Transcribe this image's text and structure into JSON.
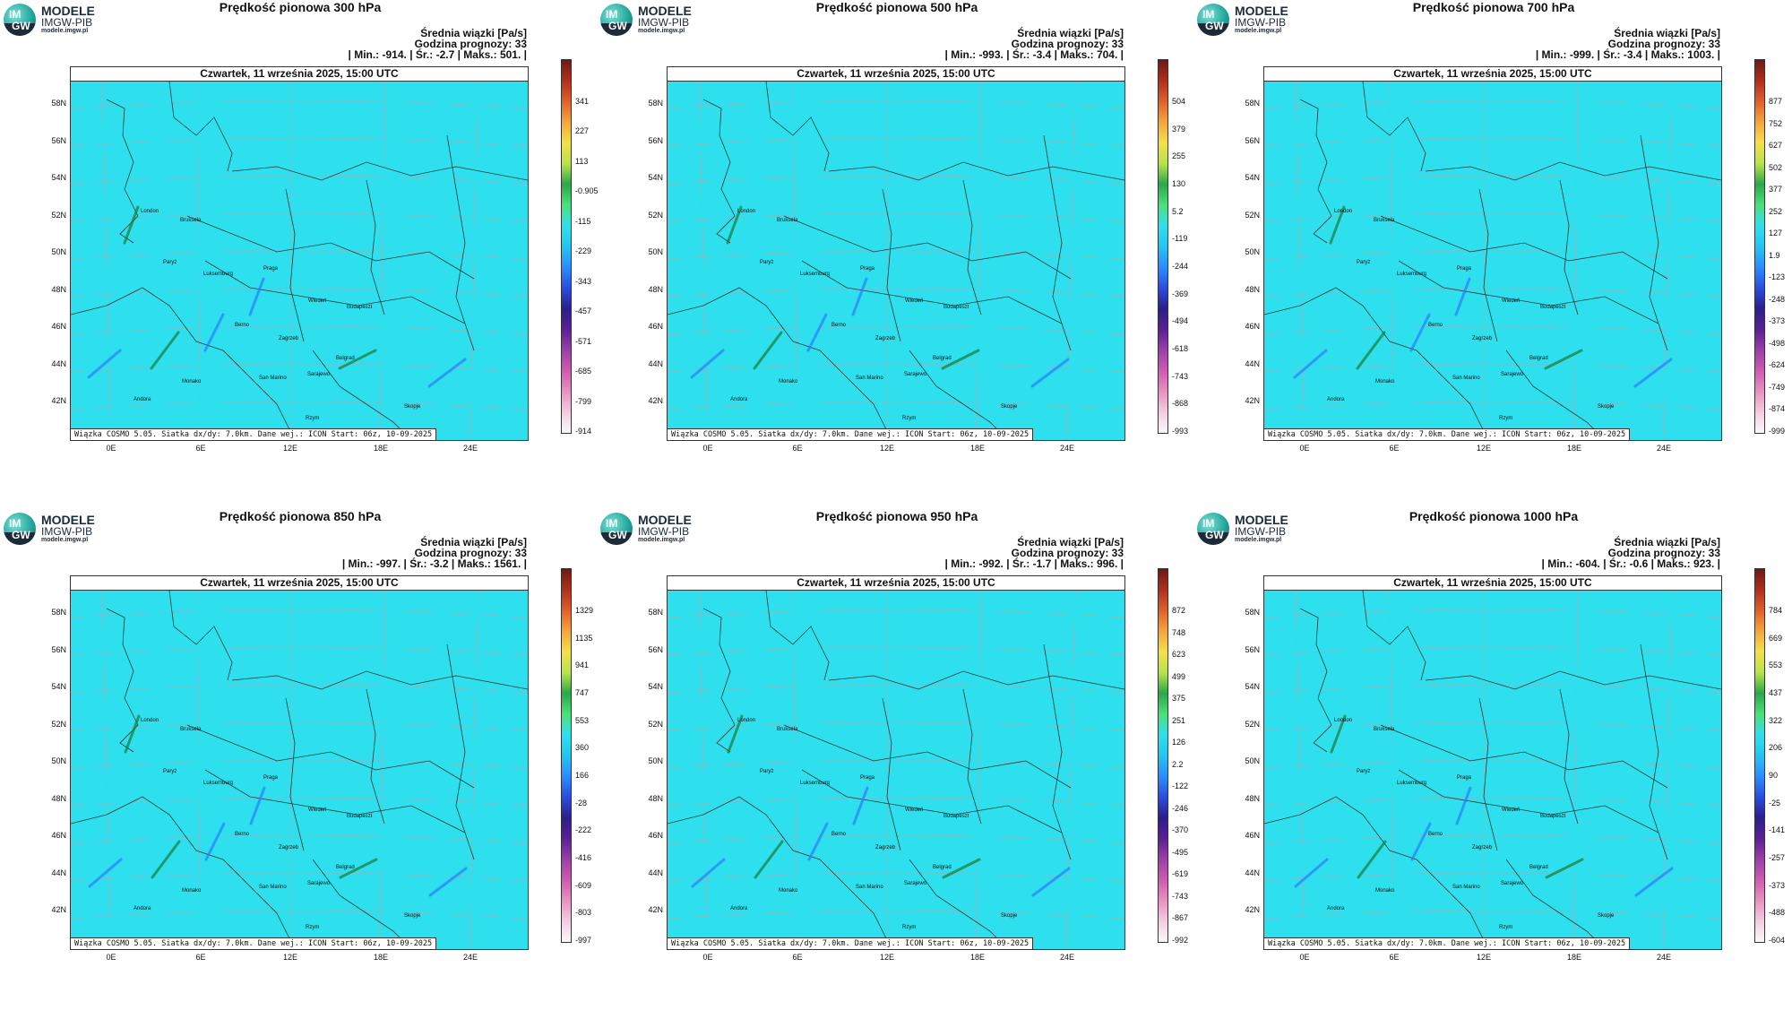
{
  "logo": {
    "name": "MODELE",
    "org": "IMGW-PIB",
    "url": "modele.imgw.pl",
    "badge_top": "IM",
    "badge_bottom": "GW"
  },
  "common": {
    "subtitle": "Średnia wiązki [Pa/s]",
    "forecast_hour": "Godzina prognozy: 33",
    "date": "Czwartek, 11 września 2025, 15:00 UTC",
    "footer": "Wiązka COSMO 5.05. Siatka dx/dy: 7.0km. Dane wej.: ICON Start: 06z, 10-09-2025",
    "lat_labels": [
      "58N",
      "56N",
      "54N",
      "52N",
      "50N",
      "48N",
      "46N",
      "44N",
      "42N"
    ],
    "lon_labels": [
      "0E",
      "6E",
      "12E",
      "18E",
      "24E"
    ],
    "cities": [
      "London",
      "Bruksela",
      "Paryż",
      "Luksemburg",
      "Praga",
      "Berno",
      "Wiedeń",
      "Budapeszt",
      "Zagrzeb",
      "Belgrad",
      "San Marino",
      "Sarajewo",
      "Andora",
      "Monako",
      "Skopje",
      "Rzym"
    ]
  },
  "panels": [
    {
      "title": "Prędkość pionowa 300 hPa",
      "stats": "| Min.: -914. | Śr.: -2.7 | Maks.: 501. |",
      "colorbar": [
        "341",
        "227",
        "113",
        "-0.905",
        "-115",
        "-229",
        "-343",
        "-457",
        "-571",
        "-685",
        "-799",
        "-914"
      ]
    },
    {
      "title": "Prędkość pionowa 500 hPa",
      "stats": "| Min.: -993. | Śr.: -3.4 | Maks.: 704. |",
      "colorbar": [
        "504",
        "379",
        "255",
        "130",
        "5.2",
        "-119",
        "-244",
        "-369",
        "-494",
        "-618",
        "-743",
        "-868",
        "-993"
      ]
    },
    {
      "title": "Prędkość pionowa 700 hPa",
      "stats": "| Min.: -999. | Śr.: -3.4 | Maks.: 1003. |",
      "colorbar": [
        "877",
        "752",
        "627",
        "502",
        "377",
        "252",
        "127",
        "1.9",
        "-123",
        "-248",
        "-373",
        "-498",
        "-624",
        "-749",
        "-874",
        "-999"
      ]
    },
    {
      "title": "Prędkość pionowa 850 hPa",
      "stats": "| Min.: -997. | Śr.: -3.2 | Maks.: 1561. |",
      "colorbar": [
        "1329",
        "1135",
        "941",
        "747",
        "553",
        "360",
        "166",
        "-28",
        "-222",
        "-416",
        "-609",
        "-803",
        "-997"
      ]
    },
    {
      "title": "Prędkość pionowa 950 hPa",
      "stats": "| Min.: -992. | Śr.: -1.7 | Maks.: 996. |",
      "colorbar": [
        "872",
        "748",
        "623",
        "499",
        "375",
        "251",
        "126",
        "2.2",
        "-122",
        "-246",
        "-370",
        "-495",
        "-619",
        "-743",
        "-867",
        "-992"
      ]
    },
    {
      "title": "Prędkość pionowa 1000 hPa",
      "stats": "| Min.: -604. | Śr.: -0.6 | Maks.: 923. |",
      "colorbar": [
        "784",
        "669",
        "553",
        "437",
        "322",
        "206",
        "90",
        "-25",
        "-141",
        "-257",
        "-373",
        "-488",
        "-604"
      ]
    }
  ],
  "colors": {
    "field": "#2ee0ee",
    "updraft": "#1a7a34",
    "downdraft": "#2a7cff"
  }
}
